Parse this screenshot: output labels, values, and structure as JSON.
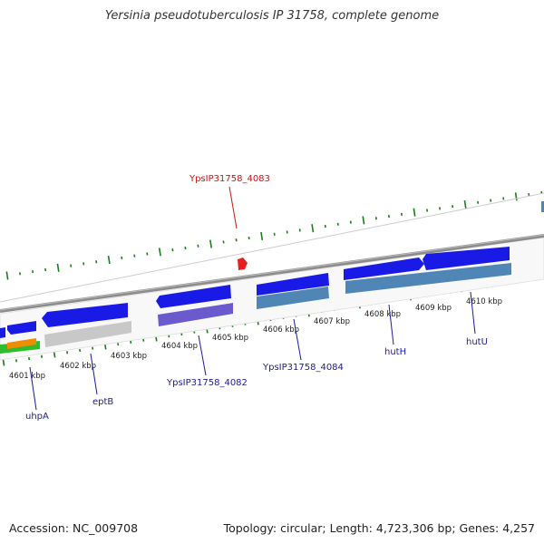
{
  "title": "Yersinia pseudotuberculosis IP 31758, complete genome",
  "footer": {
    "accession": "Accession: NC_009708",
    "summary": "Topology: circular; Length: 4,723,306 bp; Genes: 4,257"
  },
  "colors": {
    "backbone": "#8c8c8c",
    "ticks": "#1f7a1f",
    "gene_blue": "#1a1ae6",
    "gene_steel": "#4f86b5",
    "gene_purple": "#6a5acd",
    "gene_gray": "#c8c8c8",
    "gene_green": "#2ebd2e",
    "gene_orange": "#f08c00",
    "highlight": "#e62020",
    "label_blue": "#1a1a99",
    "label_red": "#cc1111"
  },
  "scale_labels": [
    "4601 kbp",
    "4602 kbp",
    "4603 kbp",
    "4604 kbp",
    "4605 kbp",
    "4606 kbp",
    "4607 kbp",
    "4608 kbp",
    "4609 kbp",
    "4610 kbp"
  ],
  "gene_labels": [
    {
      "name": "uhpA",
      "color": "blue"
    },
    {
      "name": "eptB",
      "color": "blue"
    },
    {
      "name": "YpsIP31758_4082",
      "color": "blue"
    },
    {
      "name": "YpsIP31758_4084",
      "color": "blue"
    },
    {
      "name": "hutH",
      "color": "blue"
    },
    {
      "name": "hutU",
      "color": "blue"
    },
    {
      "name": "YpsIP31758_4083",
      "color": "red"
    }
  ]
}
